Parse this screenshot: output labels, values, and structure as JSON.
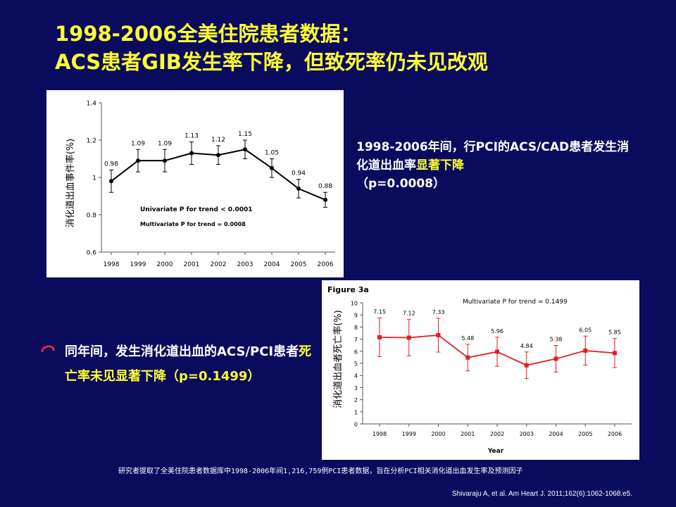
{
  "slide": {
    "title_line1": "1998-2006全美住院患者数据：",
    "title_line2": "ACS患者GIB发生率下降，但致死率仍未见改观",
    "right_note_prefix": "1998-2006年间，行PCI的ACS/CAD患者发生消化道出血率",
    "right_note_highlight": "显著下降",
    "right_note_suffix": "（p=0.0008）",
    "bullet_prefix": "同年间，发生消化道出血的ACS/PCI患者",
    "bullet_highlight": "死亡率未见显著下降（p=0.1499）",
    "source_note": "研究者提取了全美住院患者数据库中1998-2006年间1,216,759例PCI患者数据，旨在分析PCI相关消化道出血发生率及预测因子",
    "citation": "Shivaraju A,  et al. Am Heart J. 2011;162(6):1062-1068.e5.",
    "colors": {
      "background": "#0b0b5e",
      "title": "#ffff33",
      "highlight": "#ffff33",
      "text": "#ffffff",
      "series1": "#000000",
      "series2": "#e02020"
    },
    "icons": {
      "bullet": "oval-bullet-icon"
    }
  },
  "chart_data": [
    {
      "type": "line",
      "ylabel": "消化道出血事件率(%)",
      "xlabel": "",
      "categories": [
        "1998",
        "1999",
        "2000",
        "2001",
        "2002",
        "2003",
        "2004",
        "2005",
        "2006"
      ],
      "values": [
        0.98,
        1.09,
        1.09,
        1.13,
        1.12,
        1.15,
        1.05,
        0.94,
        0.88
      ],
      "error": [
        0.06,
        0.06,
        0.06,
        0.06,
        0.05,
        0.05,
        0.05,
        0.05,
        0.04
      ],
      "value_labels": [
        "0.98",
        "1.09",
        "1.09",
        "1.13",
        "1.12",
        "1.15",
        "1.05",
        "0.94",
        "0.88"
      ],
      "ylim": [
        0.6,
        1.4
      ],
      "yticks": [
        "0.6",
        "0.8",
        "1",
        "1.2",
        "1.4"
      ],
      "yticks_values": [
        0.6,
        0.8,
        1.0,
        1.2,
        1.4
      ],
      "annotations": [
        "Univariate P for trend < 0.0001",
        "Multivariate  P for trend = 0.0008"
      ],
      "color": "#000000"
    },
    {
      "type": "line",
      "figure_label": "Figure 3a",
      "ylabel": "消化道出血者死亡率(%)",
      "xlabel": "Year",
      "categories": [
        "1998",
        "1999",
        "2000",
        "2001",
        "2002",
        "2003",
        "2004",
        "2005",
        "2006"
      ],
      "values": [
        7.15,
        7.12,
        7.33,
        5.48,
        5.96,
        4.84,
        5.38,
        6.05,
        5.85
      ],
      "error": [
        1.6,
        1.5,
        1.4,
        1.1,
        1.2,
        1.1,
        1.1,
        1.2,
        1.2
      ],
      "value_labels": [
        "7.15",
        "7.12",
        "7.33",
        "5.48",
        "5.96",
        "4.84",
        "5.38",
        "6.05",
        "5.85"
      ],
      "ylim": [
        0,
        10
      ],
      "yticks": [
        "0",
        "1",
        "2",
        "3",
        "4",
        "5",
        "6",
        "7",
        "8",
        "9",
        "10"
      ],
      "yticks_values": [
        0,
        1,
        2,
        3,
        4,
        5,
        6,
        7,
        8,
        9,
        10
      ],
      "annotations": [
        "Multivariate P for trend = 0.1499"
      ],
      "color": "#e02020"
    }
  ]
}
